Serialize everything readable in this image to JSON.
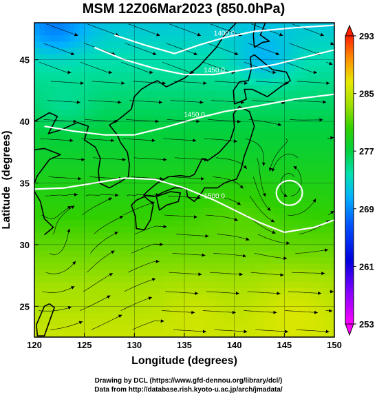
{
  "chart_data": {
    "type": "heatmap",
    "title": "MSM 12Z06Mar2023 (850.0hPa)",
    "xlabel": "Longitude (degrees)",
    "ylabel": "Latitude  (degrees)",
    "xlim": [
      120,
      150
    ],
    "ylim": [
      22.5,
      48
    ],
    "x_ticks": [
      120,
      125,
      130,
      135,
      140,
      145,
      150
    ],
    "x_tick_labels": [
      "120",
      "125",
      "130",
      "135",
      "140",
      "145",
      "150"
    ],
    "y_ticks": [
      25,
      30,
      35,
      40,
      45
    ],
    "y_tick_labels": [
      "25",
      "30",
      "35",
      "40",
      "45"
    ],
    "grid": true,
    "colorbar": {
      "range": [
        253,
        293
      ],
      "ticks": [
        253,
        261,
        269,
        277,
        285,
        293
      ],
      "tick_labels": [
        "253",
        "261",
        "269",
        "277",
        "285",
        "293"
      ],
      "placement": "right"
    },
    "contours": [
      {
        "label": "1400.0",
        "points": [
          [
            128.0,
            47.0
          ],
          [
            131.0,
            46.2
          ],
          [
            134.0,
            45.5
          ],
          [
            136.5,
            46.2
          ],
          [
            139.0,
            46.8
          ],
          [
            142.0,
            47.3
          ],
          [
            146.0,
            47.6
          ],
          [
            150.0,
            47.8
          ]
        ]
      },
      {
        "label": "1450.0",
        "points": [
          [
            126.0,
            46.0
          ],
          [
            129.0,
            45.0
          ],
          [
            132.0,
            44.3
          ],
          [
            135.0,
            43.8
          ],
          [
            138.0,
            43.8
          ],
          [
            141.0,
            44.2
          ],
          [
            144.0,
            44.6
          ],
          [
            147.0,
            45.2
          ],
          [
            150.0,
            45.8
          ]
        ]
      },
      {
        "label": "1450.0",
        "points": [
          [
            121.0,
            39.6
          ],
          [
            124.0,
            39.2
          ],
          [
            127.0,
            38.9
          ],
          [
            130.0,
            38.9
          ],
          [
            133.0,
            39.5
          ],
          [
            136.0,
            40.2
          ],
          [
            139.0,
            40.8
          ],
          [
            142.0,
            41.2
          ],
          [
            146.0,
            41.8
          ],
          [
            150.0,
            42.2
          ]
        ]
      },
      {
        "label": "1500.0",
        "points": [
          [
            120.0,
            34.5
          ],
          [
            123.0,
            34.6
          ],
          [
            126.0,
            35.0
          ],
          [
            129.0,
            35.4
          ],
          [
            132.0,
            35.3
          ],
          [
            135.0,
            34.6
          ],
          [
            138.0,
            33.6
          ],
          [
            140.0,
            32.8
          ],
          [
            142.5,
            31.8
          ],
          [
            145.0,
            31.0
          ],
          [
            148.0,
            31.4
          ],
          [
            150.0,
            32.0
          ]
        ]
      }
    ],
    "closed_contours": [
      {
        "label": "",
        "center": [
          145.5,
          34.2
        ],
        "radius_lon": 1.3,
        "radius_lat": 1.0
      }
    ],
    "coastlines": [
      {
        "name": "korea",
        "points": [
          [
            126.1,
            37.9
          ],
          [
            126.6,
            37.0
          ],
          [
            126.4,
            36.0
          ],
          [
            126.5,
            35.0
          ],
          [
            127.5,
            34.6
          ],
          [
            128.6,
            35.1
          ],
          [
            129.4,
            35.5
          ],
          [
            129.5,
            36.5
          ],
          [
            129.3,
            37.5
          ],
          [
            128.6,
            38.3
          ],
          [
            128.3,
            38.9
          ],
          [
            127.5,
            39.7
          ],
          [
            128.5,
            40.2
          ],
          [
            129.7,
            41.0
          ],
          [
            130.0,
            42.0
          ],
          [
            130.7,
            42.6
          ]
        ]
      },
      {
        "name": "china",
        "points": [
          [
            121.0,
            30.8
          ],
          [
            121.9,
            31.4
          ],
          [
            121.0,
            32.1
          ],
          [
            120.6,
            33.5
          ],
          [
            119.8,
            34.6
          ],
          [
            120.3,
            35.6
          ],
          [
            121.5,
            36.9
          ],
          [
            122.6,
            37.3
          ],
          [
            121.0,
            37.8
          ],
          [
            120.0,
            37.7
          ]
        ]
      },
      {
        "name": "liaoning",
        "points": [
          [
            120.0,
            40.0
          ],
          [
            121.5,
            40.7
          ],
          [
            122.3,
            40.4
          ],
          [
            121.4,
            39.0
          ],
          [
            122.6,
            39.3
          ],
          [
            124.3,
            39.9
          ],
          [
            125.4,
            39.6
          ],
          [
            125.0,
            38.5
          ],
          [
            126.1,
            37.9
          ]
        ]
      },
      {
        "name": "kyushu",
        "points": [
          [
            130.2,
            33.6
          ],
          [
            131.0,
            33.9
          ],
          [
            131.9,
            33.3
          ],
          [
            131.6,
            32.0
          ],
          [
            131.0,
            31.2
          ],
          [
            130.2,
            31.3
          ],
          [
            130.1,
            32.3
          ],
          [
            129.7,
            33.2
          ],
          [
            130.2,
            33.6
          ]
        ]
      },
      {
        "name": "shikoku",
        "points": [
          [
            132.2,
            33.9
          ],
          [
            133.6,
            34.3
          ],
          [
            134.6,
            34.2
          ],
          [
            134.4,
            33.5
          ],
          [
            133.2,
            33.2
          ],
          [
            132.5,
            32.8
          ],
          [
            132.2,
            33.9
          ]
        ]
      },
      {
        "name": "honshu",
        "points": [
          [
            130.9,
            34.0
          ],
          [
            131.4,
            34.4
          ],
          [
            132.3,
            35.0
          ],
          [
            133.4,
            35.5
          ],
          [
            134.6,
            35.6
          ],
          [
            135.5,
            35.5
          ],
          [
            136.0,
            35.7
          ],
          [
            136.8,
            37.0
          ],
          [
            137.3,
            36.8
          ],
          [
            138.5,
            37.5
          ],
          [
            139.6,
            38.5
          ],
          [
            140.0,
            39.5
          ],
          [
            139.9,
            40.6
          ],
          [
            140.5,
            41.2
          ],
          [
            141.5,
            40.8
          ],
          [
            142.0,
            39.6
          ],
          [
            141.5,
            38.3
          ],
          [
            141.0,
            37.2
          ],
          [
            140.7,
            36.2
          ],
          [
            140.2,
            35.3
          ],
          [
            139.7,
            35.2
          ],
          [
            139.0,
            35.0
          ],
          [
            138.3,
            34.6
          ],
          [
            137.0,
            34.6
          ],
          [
            136.8,
            34.3
          ],
          [
            136.0,
            33.5
          ],
          [
            135.3,
            33.9
          ],
          [
            135.2,
            34.6
          ],
          [
            134.0,
            34.6
          ],
          [
            133.0,
            34.3
          ],
          [
            132.0,
            33.9
          ],
          [
            130.9,
            34.0
          ]
        ]
      },
      {
        "name": "hokkaido",
        "points": [
          [
            140.0,
            41.4
          ],
          [
            141.2,
            41.8
          ],
          [
            141.0,
            42.6
          ],
          [
            141.8,
            42.6
          ],
          [
            143.3,
            42.0
          ],
          [
            144.8,
            42.9
          ],
          [
            145.6,
            43.3
          ],
          [
            145.2,
            44.0
          ],
          [
            143.8,
            44.2
          ],
          [
            142.0,
            45.4
          ],
          [
            141.6,
            45.2
          ],
          [
            141.7,
            44.3
          ],
          [
            141.4,
            43.3
          ],
          [
            140.5,
            43.2
          ],
          [
            139.9,
            42.5
          ],
          [
            140.0,
            41.4
          ]
        ]
      },
      {
        "name": "sakhalin",
        "points": [
          [
            142.0,
            46.0
          ],
          [
            141.9,
            47.0
          ],
          [
            142.1,
            48.0
          ],
          [
            143.1,
            48.0
          ],
          [
            142.6,
            47.0
          ],
          [
            143.5,
            46.5
          ],
          [
            142.8,
            46.4
          ],
          [
            142.0,
            46.0
          ]
        ]
      },
      {
        "name": "russia",
        "points": [
          [
            130.7,
            42.6
          ],
          [
            131.5,
            43.0
          ],
          [
            132.3,
            43.3
          ],
          [
            133.2,
            42.8
          ],
          [
            135.0,
            43.5
          ],
          [
            136.5,
            44.5
          ],
          [
            138.2,
            46.0
          ],
          [
            139.0,
            47.0
          ],
          [
            140.2,
            48.0
          ]
        ]
      },
      {
        "name": "taiwan",
        "points": [
          [
            121.5,
            25.2
          ],
          [
            122.0,
            24.9
          ],
          [
            121.6,
            24.0
          ],
          [
            121.0,
            22.6
          ],
          [
            120.3,
            22.6
          ],
          [
            120.2,
            23.5
          ],
          [
            121.0,
            25.0
          ],
          [
            121.5,
            25.2
          ]
        ]
      }
    ],
    "wind_field": {
      "description": "streamlines",
      "dominant_direction": "eastward"
    }
  },
  "footer": {
    "line1": "Drawing by DCL (https://www.gfd-dennou.org/library/dcl/)",
    "line2": "Data from http://database.rish.kyoto-u.ac.jp/arch/jmadata/"
  }
}
